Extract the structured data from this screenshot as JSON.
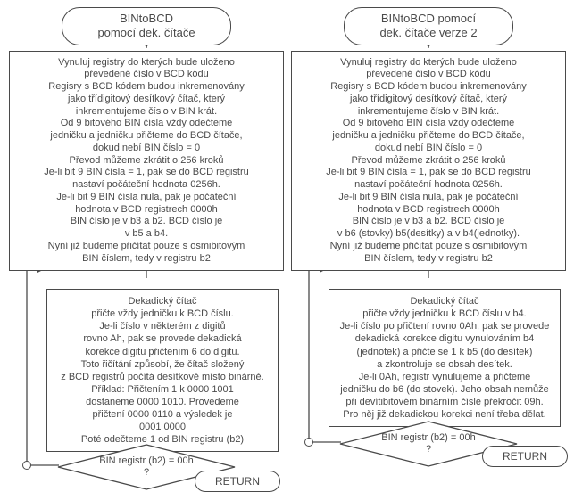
{
  "colors": {
    "stroke": "#4a4a4a",
    "bg": "#ffffff"
  },
  "left": {
    "title": [
      "BINtoBCD",
      "pomocí dek. čítače"
    ],
    "desc": [
      "Vynuluj registry do kterých bude uloženo",
      "převedené číslo v BCD kódu",
      "Regisry s BCD kódem budou inkremenovány",
      "jako třídigitový desítkový čítač, který",
      "inkrementujeme číslo v BIN krát.",
      "Od 9 bitového BIN čísla vždy odečteme",
      "jedničku a jedničku přičteme do BCD čítače,",
      "dokud nebí BIN číslo = 0",
      "Převod můžeme zkrátit o 256 kroků",
      "Je-li bit 9 BIN čísla = 1, pak se do BCD registru",
      "nastaví počáteční hodnota 0256h.",
      "Je-li bit 9 BIN čísla nula, pak je počáteční",
      "hodnota v BCD registrech 0000h",
      "BIN číslo je v b3 a b2. BCD číslo je",
      "v b5 a b4.",
      "Nyní již budeme přičítat pouze s osmibitovým",
      "BIN číslem, tedy v registru b2"
    ],
    "proc": [
      "Dekadický čítač",
      "přičte vždy jedničku k BCD číslu.",
      "Je-li číslo v některém z digitů",
      "rovno Ah, pak se provede dekadická",
      "korekce digitu přičtením 6 do digitu.",
      "Toto řičítání způsobí, že čítač složený",
      "z BCD registrů počítá desítkově místo binárně.",
      "Příklad: Přičtením 1 k 0000 1001",
      "dostaneme 0000 1010. Provedeme",
      "přičtení 0000 0110 a výsledek je",
      "0001 0000",
      "Poté odečteme 1 od BIN registru (b2)"
    ],
    "decision": [
      "BIN registr (b2) = 00h",
      "?"
    ],
    "return": "RETURN"
  },
  "right": {
    "title": [
      "BINtoBCD pomocí",
      "dek. čítače verze 2"
    ],
    "desc": [
      "Vynuluj registry do kterých bude uloženo",
      "převedené číslo v BCD kódu",
      "Regisry s BCD kódem budou inkremenovány",
      "jako třídigitový desítkový čítač, který",
      "inkrementujeme číslo v BIN krát.",
      "Od 9 bitového BIN čísla vždy odečteme",
      "jedničku a jedničku přičteme do BCD čítače,",
      "dokud nebí BIN číslo = 0",
      "Převod můžeme zkrátit o 256 kroků",
      "Je-li bit 9 BIN čísla = 1, pak se do BCD registru",
      "nastaví počáteční hodnota 0256h.",
      "Je-li bit 9 BIN čísla nula, pak je počáteční",
      "hodnota v BCD registrech 0000h",
      "BIN číslo je v b3 a b2. BCD číslo je",
      "v b6 (stovky) b5(desítky) a v b4(jednotky).",
      "Nyní již budeme přičítat pouze s osmibitovým",
      "BIN číslem, tedy v registru b2"
    ],
    "proc": [
      "Dekadický čítač",
      "přičte vždy jedničku k BCD číslu v b4.",
      "Je-li číslo po přičtení rovno 0Ah, pak se provede",
      "dekadická korekce digitu vynulováním b4",
      "(jednotek) a přičte se 1 k b5 (do desítek)",
      "a zkontroluje se obsah desítek.",
      "Je-li 0Ah, registr vynulujeme a přičteme",
      "jedničku do b6 (do stovek). Jeho obsah nemůže",
      "při devítibitovém binárním čísle překročit 09h.",
      "Pro něj již dekadickou korekci není třeba dělat."
    ],
    "decision": [
      "BIN registr (b2) = 00h",
      "?"
    ],
    "return": "RETURN"
  }
}
